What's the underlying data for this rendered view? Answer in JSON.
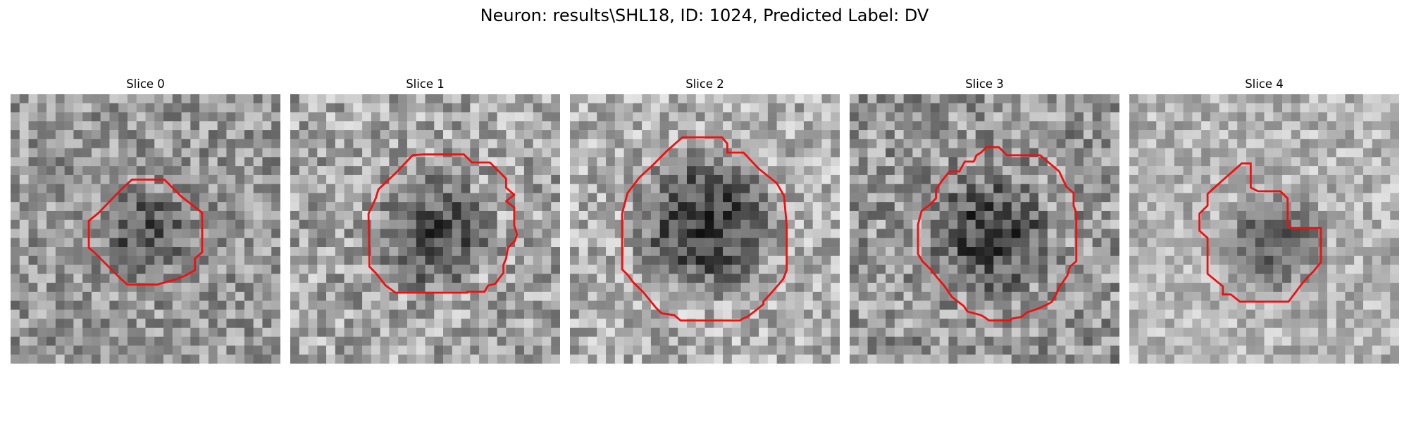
{
  "figure": {
    "title": "Neuron: results\\SHL18, ID: 1024, Predicted Label: DV"
  },
  "contour_color": "#ee1111",
  "panels": [
    {
      "label": "Slice 0",
      "grid": 30,
      "base_gray": 150,
      "noise": 55,
      "blob": {
        "cx": 15,
        "cy": 15.5,
        "r": 5.5,
        "dark": 70
      },
      "contour": [
        [
          13.5,
          9.5
        ],
        [
          17.1,
          9.5
        ],
        [
          19,
          11.4
        ],
        [
          21.3,
          13.2
        ],
        [
          21.3,
          17.6
        ],
        [
          20.5,
          18.3
        ],
        [
          20.5,
          19.6
        ],
        [
          19.4,
          20.2
        ],
        [
          18.4,
          20.6
        ],
        [
          16.3,
          21.2
        ],
        [
          13,
          21.2
        ],
        [
          12.3,
          20.6
        ],
        [
          10.8,
          19.1
        ],
        [
          9.3,
          17.6
        ],
        [
          8.7,
          17.1
        ],
        [
          8.7,
          14.1
        ],
        [
          9.8,
          13.2
        ],
        [
          12.4,
          10.5
        ]
      ]
    },
    {
      "label": "Slice 1",
      "grid": 30,
      "base_gray": 165,
      "noise": 60,
      "blob": {
        "cx": 16,
        "cy": 15.5,
        "r": 7.2,
        "dark": 90
      },
      "contour": [
        [
          14.8,
          6.7
        ],
        [
          19.3,
          6.7
        ],
        [
          20.2,
          7.6
        ],
        [
          22.2,
          7.6
        ],
        [
          23.3,
          8.7
        ],
        [
          24,
          9.4
        ],
        [
          24,
          10.4
        ],
        [
          24.9,
          11.2
        ],
        [
          24,
          11.9
        ],
        [
          24.9,
          12.6
        ],
        [
          24.9,
          14.6
        ],
        [
          25.2,
          15.6
        ],
        [
          25,
          16.3
        ],
        [
          24.2,
          17.1
        ],
        [
          24,
          18.3
        ],
        [
          23.7,
          19
        ],
        [
          23.7,
          19.9
        ],
        [
          23.3,
          20.4
        ],
        [
          22.8,
          21.1
        ],
        [
          22,
          21.3
        ],
        [
          21.6,
          22
        ],
        [
          19.7,
          22
        ],
        [
          19.7,
          22.1
        ],
        [
          11.7,
          22.1
        ],
        [
          10.6,
          21.3
        ],
        [
          9.5,
          19.9
        ],
        [
          8.8,
          19.2
        ],
        [
          8.8,
          18.4
        ],
        [
          8.7,
          13.3
        ],
        [
          9.5,
          11.6
        ],
        [
          9.8,
          10.6
        ],
        [
          11.8,
          8.7
        ],
        [
          13.6,
          6.8
        ]
      ]
    },
    {
      "label": "Slice 2",
      "grid": 30,
      "base_gray": 175,
      "noise": 55,
      "blob": {
        "cx": 15,
        "cy": 14.5,
        "r": 9,
        "dark": 115
      },
      "contour": [
        [
          12.5,
          4.8
        ],
        [
          16.9,
          4.8
        ],
        [
          17.5,
          5.5
        ],
        [
          17.5,
          6.5
        ],
        [
          19.3,
          6.5
        ],
        [
          21,
          8.3
        ],
        [
          23,
          9.9
        ],
        [
          23.8,
          11.3
        ],
        [
          24.1,
          14.6
        ],
        [
          24.1,
          19.6
        ],
        [
          23.7,
          20.6
        ],
        [
          22.5,
          22
        ],
        [
          21.5,
          23.1
        ],
        [
          21.5,
          23.4
        ],
        [
          20.5,
          24.2
        ],
        [
          19.7,
          24.8
        ],
        [
          19.2,
          25
        ],
        [
          18.9,
          25.2
        ],
        [
          12.3,
          25.2
        ],
        [
          11.6,
          24.6
        ],
        [
          10.2,
          24.4
        ],
        [
          9.5,
          23.7
        ],
        [
          8.2,
          22.1
        ],
        [
          7,
          20.9
        ],
        [
          6.5,
          20.2
        ],
        [
          5.8,
          19.5
        ],
        [
          5.8,
          13.3
        ],
        [
          6.4,
          11
        ],
        [
          7.7,
          9.3
        ],
        [
          9.2,
          7.9
        ],
        [
          10.8,
          6.3
        ],
        [
          11.7,
          5.5
        ]
      ]
    },
    {
      "label": "Slice 3",
      "grid": 30,
      "base_gray": 150,
      "noise": 60,
      "blob": {
        "cx": 15.5,
        "cy": 15.5,
        "r": 7.5,
        "dark": 85
      },
      "contour": [
        [
          15.2,
          5.9
        ],
        [
          16.6,
          5.9
        ],
        [
          17.5,
          6.8
        ],
        [
          21.2,
          6.8
        ],
        [
          23.3,
          8.6
        ],
        [
          24.1,
          10.3
        ],
        [
          24.9,
          11
        ],
        [
          24.9,
          12.4
        ],
        [
          25.2,
          13.2
        ],
        [
          25.2,
          18.6
        ],
        [
          24.5,
          19.2
        ],
        [
          24.2,
          20.2
        ],
        [
          23.3,
          21.5
        ],
        [
          23,
          22.2
        ],
        [
          22.5,
          23.1
        ],
        [
          22,
          23.4
        ],
        [
          20.9,
          23.9
        ],
        [
          19.7,
          24.3
        ],
        [
          19.1,
          24.8
        ],
        [
          18,
          25
        ],
        [
          17.9,
          25.2
        ],
        [
          15.5,
          25.2
        ],
        [
          15.1,
          24.9
        ],
        [
          14.6,
          24.6
        ],
        [
          13.1,
          24.2
        ],
        [
          12.7,
          23.6
        ],
        [
          11.4,
          22.6
        ],
        [
          10.5,
          21.3
        ],
        [
          9.8,
          20.5
        ],
        [
          9.1,
          19.6
        ],
        [
          8.1,
          18.6
        ],
        [
          7.6,
          17.8
        ],
        [
          7.6,
          14.5
        ],
        [
          8,
          13
        ],
        [
          8.8,
          12.4
        ],
        [
          9.6,
          11.6
        ],
        [
          9.6,
          10.6
        ],
        [
          10.3,
          9.6
        ],
        [
          11.1,
          8.6
        ],
        [
          12.2,
          8.6
        ],
        [
          12.8,
          7.5
        ],
        [
          13.8,
          7.5
        ],
        [
          14.1,
          6.8
        ],
        [
          14.6,
          6.5
        ]
      ]
    },
    {
      "label": "Slice 4",
      "grid": 30,
      "base_gray": 180,
      "noise": 45,
      "blob": {
        "cx": 16,
        "cy": 16.5,
        "r": 6.5,
        "dark": 80
      },
      "contour": [
        [
          12.5,
          7.7
        ],
        [
          13.5,
          7.7
        ],
        [
          13.5,
          10.4
        ],
        [
          14.3,
          10.8
        ],
        [
          16.8,
          10.8
        ],
        [
          17.6,
          11.6
        ],
        [
          17.6,
          14.6
        ],
        [
          18.1,
          14.9
        ],
        [
          21.3,
          14.9
        ],
        [
          21.3,
          18.7
        ],
        [
          20.5,
          19.7
        ],
        [
          19.8,
          20.4
        ],
        [
          19.2,
          21.1
        ],
        [
          17.7,
          23.1
        ],
        [
          12.3,
          23.1
        ],
        [
          11.3,
          22.3
        ],
        [
          10.4,
          22.3
        ],
        [
          10.4,
          21.4
        ],
        [
          8.7,
          20
        ],
        [
          8.7,
          16
        ],
        [
          7.8,
          15.2
        ],
        [
          7.8,
          13.3
        ],
        [
          8.7,
          12.4
        ],
        [
          8.7,
          11.1
        ],
        [
          9.9,
          10
        ]
      ]
    }
  ]
}
